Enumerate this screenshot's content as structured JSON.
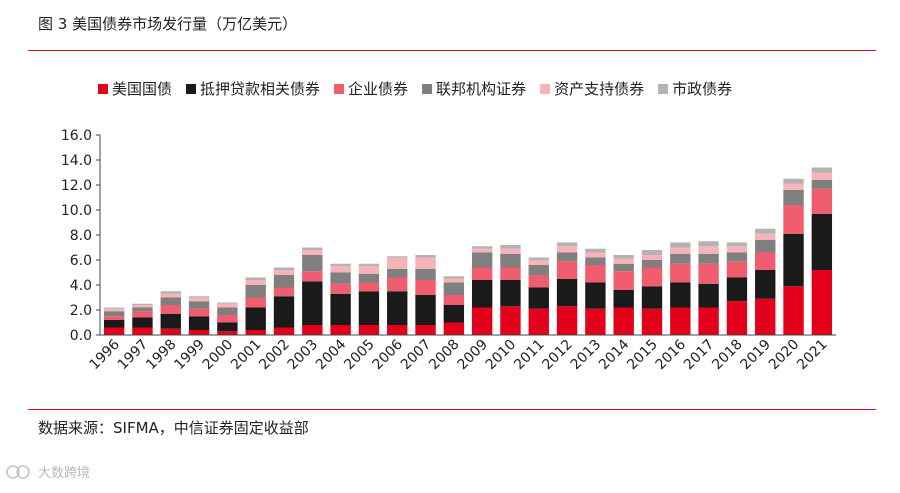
{
  "figure": {
    "title": "图 3  美国债券市场发行量（万亿美元）",
    "source": "数据来源：SIFMA，中信证券固定收益部",
    "watermark": "大数跨境"
  },
  "chart_data": {
    "type": "bar",
    "stacked": true,
    "title": "",
    "xlabel": "",
    "ylabel": "",
    "ylim": [
      0,
      16
    ],
    "yticks": [
      "0.0",
      "2.0",
      "4.0",
      "6.0",
      "8.0",
      "10.0",
      "12.0",
      "14.0",
      "16.0"
    ],
    "grid": false,
    "legend_position": "top",
    "categories": [
      "1996",
      "1997",
      "1998",
      "1999",
      "2000",
      "2001",
      "2002",
      "2003",
      "2004",
      "2005",
      "2006",
      "2007",
      "2008",
      "2009",
      "2010",
      "2011",
      "2012",
      "2013",
      "2014",
      "2015",
      "2016",
      "2017",
      "2018",
      "2019",
      "2020",
      "2021"
    ],
    "series": [
      {
        "name": "美国国债",
        "color": "#e2001a",
        "values": [
          0.6,
          0.6,
          0.5,
          0.4,
          0.3,
          0.4,
          0.6,
          0.8,
          0.8,
          0.8,
          0.8,
          0.8,
          1.0,
          2.2,
          2.3,
          2.1,
          2.3,
          2.1,
          2.2,
          2.1,
          2.2,
          2.2,
          2.7,
          2.9,
          3.9,
          5.2
        ]
      },
      {
        "name": "抵押贷款相关债券",
        "color": "#1a1a1a",
        "values": [
          0.6,
          0.8,
          1.2,
          1.1,
          0.7,
          1.8,
          2.5,
          3.5,
          2.5,
          2.7,
          2.7,
          2.4,
          1.4,
          2.2,
          2.1,
          1.7,
          2.2,
          2.1,
          1.4,
          1.8,
          2.0,
          1.9,
          1.9,
          2.3,
          4.2,
          4.5
        ]
      },
      {
        "name": "企业债券",
        "color": "#f05d6e",
        "values": [
          0.3,
          0.5,
          0.7,
          0.6,
          0.6,
          0.8,
          0.7,
          0.8,
          0.8,
          0.7,
          1.1,
          1.2,
          0.8,
          1.0,
          1.0,
          1.0,
          1.4,
          1.4,
          1.5,
          1.5,
          1.5,
          1.6,
          1.3,
          1.4,
          2.3,
          2.0
        ]
      },
      {
        "name": "联邦机构证券",
        "color": "#7f7f7f",
        "values": [
          0.4,
          0.3,
          0.6,
          0.6,
          0.6,
          1.0,
          1.0,
          1.3,
          0.9,
          0.7,
          0.7,
          0.9,
          1.0,
          1.2,
          1.1,
          0.8,
          0.7,
          0.6,
          0.6,
          0.6,
          0.8,
          0.8,
          0.7,
          1.0,
          1.2,
          0.7
        ]
      },
      {
        "name": "资产支持债券",
        "color": "#f8b3ba",
        "values": [
          0.2,
          0.2,
          0.3,
          0.3,
          0.3,
          0.4,
          0.4,
          0.4,
          0.5,
          0.6,
          0.9,
          0.9,
          0.3,
          0.3,
          0.4,
          0.4,
          0.5,
          0.4,
          0.4,
          0.4,
          0.5,
          0.6,
          0.5,
          0.5,
          0.5,
          0.6
        ]
      },
      {
        "name": "市政债券",
        "color": "#b3b3b3",
        "values": [
          0.1,
          0.1,
          0.2,
          0.1,
          0.1,
          0.2,
          0.2,
          0.2,
          0.2,
          0.2,
          0.1,
          0.2,
          0.2,
          0.2,
          0.3,
          0.2,
          0.3,
          0.3,
          0.3,
          0.4,
          0.4,
          0.4,
          0.3,
          0.4,
          0.4,
          0.4
        ]
      }
    ]
  }
}
